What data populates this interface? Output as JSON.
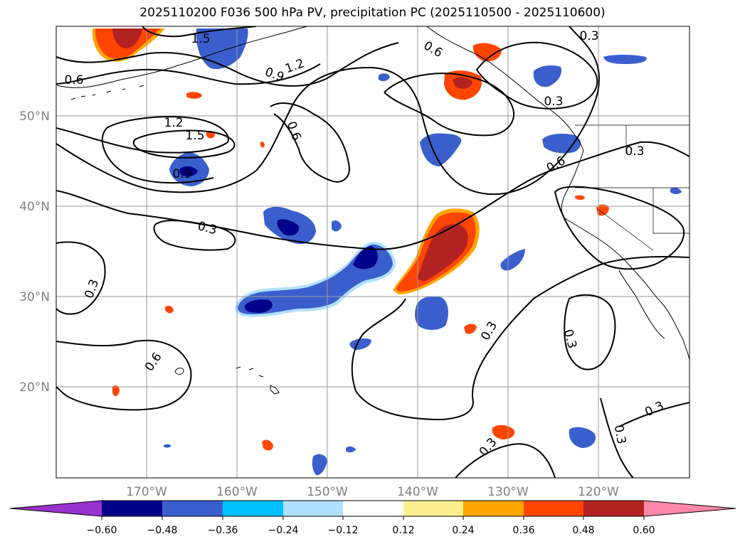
{
  "title": "2025110200 F036 500 hPa PV, precipitation PC (2025110500 - 2025110600)",
  "map": {
    "lon_labels": [
      "170°W",
      "160°W",
      "150°W",
      "140°W",
      "130°W",
      "120°W"
    ],
    "lat_labels": [
      "50°N",
      "40°N",
      "30°N",
      "20°N"
    ],
    "contour_labels": [
      "1.5",
      "1.2",
      "0.9",
      "0.6",
      "0.3",
      "0.6",
      "1.2",
      "1.5",
      "0.9",
      "0.6",
      "0.3",
      "0.3",
      "0.6",
      "0.3",
      "0.3",
      "0.3",
      "0.6",
      "0.3",
      "0.3",
      "0.3",
      "0.3"
    ],
    "colors": {
      "purple": "#9932cc",
      "navy": "#00008b",
      "blue": "#3a5fcd",
      "sky": "#00bfff",
      "lightblue": "#b0e2ff",
      "white": "#ffffff",
      "khaki": "#fff08f",
      "orange": "#ffa500",
      "orangered": "#ff4500",
      "firebrick": "#b22222",
      "pink": "#ff88aa"
    }
  },
  "colorbar": {
    "ticks": [
      "−0.60",
      "−0.48",
      "−0.36",
      "−0.24",
      "−0.12",
      "0.12",
      "0.24",
      "0.36",
      "0.48",
      "0.60"
    ],
    "bins": [
      "#9932cc",
      "#00008b",
      "#3a5fcd",
      "#00bfff",
      "#b0e2ff",
      "#ffffff",
      "#fff08f",
      "#ffa500",
      "#ff4500",
      "#b22222",
      "#ff88aa"
    ]
  }
}
